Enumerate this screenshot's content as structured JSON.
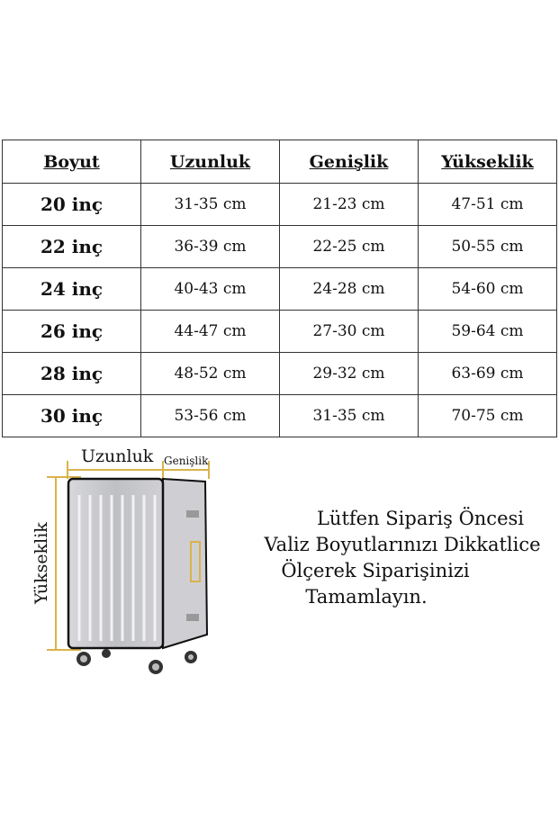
{
  "table": {
    "headers": [
      "Boyut",
      "Uzunluk",
      "Genişlik",
      "Yükseklik"
    ],
    "rows": [
      [
        "20 inç",
        "31-35 cm",
        "21-23 cm",
        "47-51 cm"
      ],
      [
        "22 inç",
        "36-39 cm",
        "22-25 cm",
        "50-55 cm"
      ],
      [
        "24 inç",
        "40-43 cm",
        "24-28 cm",
        "54-60 cm"
      ],
      [
        "26 inç",
        "44-47 cm",
        "27-30 cm",
        "59-64 cm"
      ],
      [
        "28 inç",
        "48-52 cm",
        "29-32 cm",
        "63-69 cm"
      ],
      [
        "30 inç",
        "53-56 cm",
        "31-35 cm",
        "70-75 cm"
      ]
    ]
  },
  "diagram": {
    "length_label": "Uzunluk",
    "width_label": "Genişlik",
    "height_label": "Yükseklik",
    "guide_color": "#d9b24a"
  },
  "note": {
    "lines": [
      "Lütfen Sipariş Öncesi",
      "Valiz Boyutlarınızı Dikkatlice",
      "Ölçerek Siparişinizi",
      "Tamamlayın."
    ]
  }
}
